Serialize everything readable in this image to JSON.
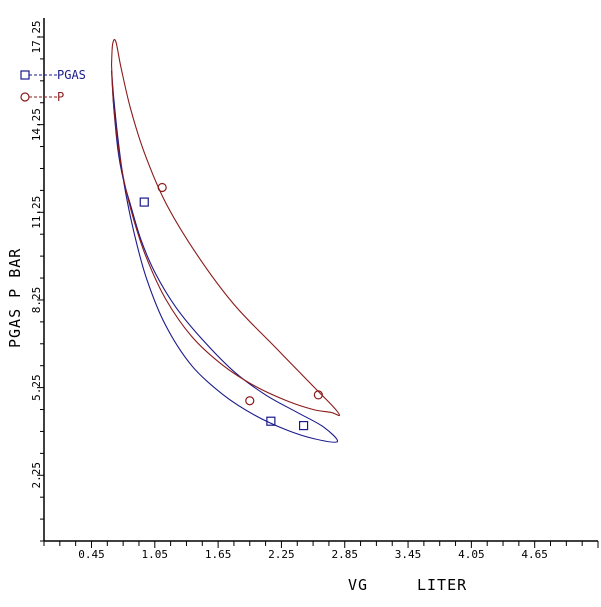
{
  "chart_data": {
    "type": "line",
    "xlabel": "VG",
    "xunit": "LITER",
    "ylabel": "PGAS P BAR",
    "xlim": [
      0,
      5.25
    ],
    "ylim": [
      0,
      17.9
    ],
    "x_ticks": [
      "0.45",
      "1.05",
      "1.65",
      "2.25",
      "2.85",
      "3.45",
      "4.05",
      "4.65"
    ],
    "y_ticks": [
      "2.25",
      "5.25",
      "8.25",
      "11.25",
      "14.25",
      "17.25"
    ],
    "grid": false,
    "legend_position": "top-left",
    "series": [
      {
        "name": "PGAS",
        "color": "#1a1a8c",
        "marker": "square",
        "x": [
          0.64,
          0.66,
          0.7,
          0.75,
          0.82,
          0.92,
          1.05,
          1.25,
          1.5,
          1.8,
          2.1,
          2.4,
          2.65,
          2.78,
          2.56,
          2.3,
          2.0,
          1.7,
          1.4,
          1.15,
          0.97,
          0.85,
          0.76,
          0.7,
          0.66,
          0.64
        ],
        "y": [
          16.1,
          14.9,
          13.4,
          12.4,
          11.5,
          10.3,
          9.2,
          8.0,
          6.9,
          5.8,
          5.0,
          4.4,
          3.9,
          3.4,
          3.5,
          3.8,
          4.3,
          5.0,
          6.0,
          7.4,
          9.0,
          10.6,
          12.2,
          13.8,
          15.2,
          16.1
        ],
        "markers": [
          [
            0.95,
            11.6
          ],
          [
            2.15,
            4.1
          ],
          [
            2.46,
            3.95
          ]
        ]
      },
      {
        "name": "P",
        "color": "#8b1a1a",
        "marker": "circle",
        "x": [
          0.64,
          0.66,
          0.7,
          0.76,
          0.85,
          0.97,
          1.15,
          1.4,
          1.7,
          2.0,
          2.3,
          2.55,
          2.72,
          2.8,
          2.74,
          2.55,
          2.2,
          1.8,
          1.45,
          1.15,
          0.95,
          0.82,
          0.73,
          0.68,
          0.65,
          0.64
        ],
        "y": [
          16.3,
          14.9,
          13.6,
          12.3,
          11.0,
          9.7,
          8.3,
          7.0,
          6.0,
          5.3,
          4.8,
          4.5,
          4.4,
          4.3,
          4.6,
          5.3,
          6.6,
          8.1,
          9.8,
          11.6,
          13.3,
          14.8,
          16.2,
          17.1,
          17.0,
          16.3
        ],
        "markers": [
          [
            1.12,
            12.1
          ],
          [
            1.95,
            4.8
          ],
          [
            2.6,
            5.0
          ]
        ]
      }
    ]
  }
}
